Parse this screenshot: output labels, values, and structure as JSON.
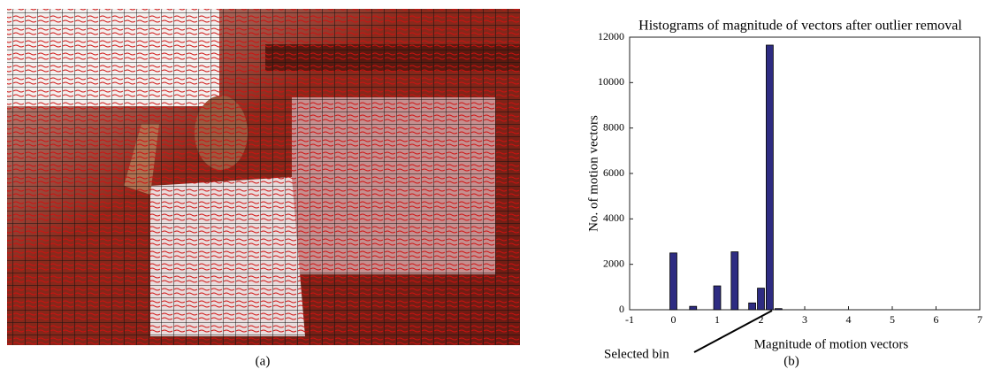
{
  "chart_data": {
    "type": "bar",
    "title": "Histograms of magnitude of vectors after outlier removal",
    "x_label": "Magnitude of motion vectors",
    "y_label": "No. of motion vectors",
    "x": [
      0,
      0.45,
      1.0,
      1.4,
      1.8,
      2.0,
      2.2,
      2.4
    ],
    "values": [
      2500,
      150,
      1050,
      2550,
      300,
      950,
      11650,
      50
    ],
    "color": "#2e2c82",
    "xlim": [
      -1,
      7
    ],
    "xticks": [
      -1,
      0,
      1,
      2,
      3,
      4,
      5,
      6,
      7
    ],
    "ylim": [
      0,
      12000
    ],
    "yticks": [
      0,
      2000,
      4000,
      6000,
      8000,
      10000,
      12000
    ],
    "annotation": "Selected bin"
  },
  "captions": {
    "left": "(a)",
    "right": "(b)"
  }
}
